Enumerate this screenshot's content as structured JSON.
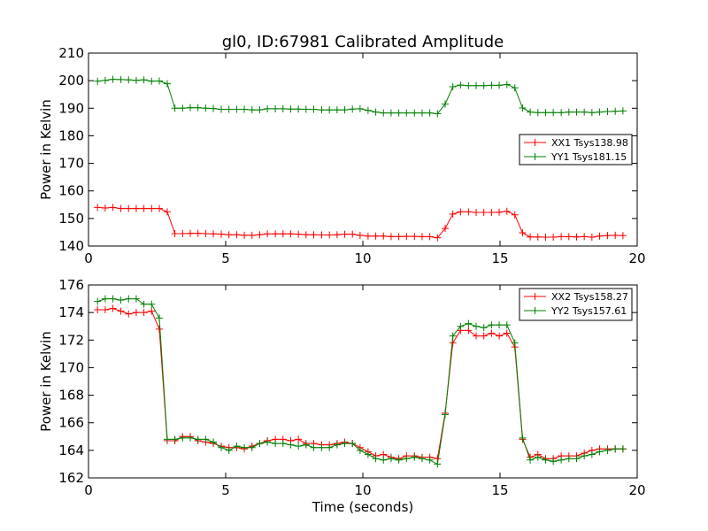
{
  "figure": {
    "title": "gl0, ID:67981 Calibrated Amplitude",
    "xlabel": "Time (seconds)"
  },
  "chart_data": [
    {
      "type": "line",
      "ylabel": "Power in Kelvin",
      "xlabel": "",
      "xlim": [
        0,
        20
      ],
      "ylim": [
        140,
        210
      ],
      "x_ticks": [
        0,
        5,
        10,
        15,
        20
      ],
      "y_ticks": [
        140,
        150,
        160,
        170,
        180,
        190,
        200,
        210
      ],
      "legend_position": "center-right",
      "series": [
        {
          "name": "XX1 Tsys138.98",
          "color": "#ff0000",
          "x": [
            0.33,
            0.61,
            0.89,
            1.18,
            1.46,
            1.74,
            2.02,
            2.3,
            2.58,
            2.87,
            3.15,
            3.43,
            3.71,
            3.99,
            4.27,
            4.55,
            4.84,
            5.12,
            5.4,
            5.68,
            5.96,
            6.24,
            6.52,
            6.81,
            7.09,
            7.37,
            7.65,
            7.93,
            8.21,
            8.5,
            8.78,
            9.06,
            9.34,
            9.62,
            9.9,
            10.19,
            10.47,
            10.75,
            11.03,
            11.31,
            11.59,
            11.88,
            12.16,
            12.44,
            12.72,
            13.0,
            13.28,
            13.56,
            13.85,
            14.13,
            14.41,
            14.69,
            14.97,
            15.25,
            15.54,
            15.82,
            16.1,
            16.38,
            16.66,
            16.94,
            17.23,
            17.51,
            17.79,
            18.07,
            18.35,
            18.63,
            18.92,
            19.2,
            19.48
          ],
          "y": [
            154.0,
            153.8,
            154.0,
            153.6,
            153.6,
            153.6,
            153.6,
            153.6,
            153.6,
            152.4,
            144.5,
            144.5,
            144.6,
            144.6,
            144.5,
            144.4,
            144.3,
            144.1,
            144.1,
            143.9,
            143.9,
            144.1,
            144.4,
            144.4,
            144.4,
            144.4,
            144.3,
            144.1,
            144.1,
            144.0,
            144.0,
            144.1,
            144.3,
            144.3,
            143.9,
            143.6,
            143.6,
            143.6,
            143.4,
            143.4,
            143.5,
            143.5,
            143.4,
            143.4,
            143.0,
            146.4,
            151.6,
            152.4,
            152.4,
            152.2,
            152.2,
            152.2,
            152.3,
            152.6,
            151.3,
            144.8,
            143.3,
            143.3,
            143.2,
            143.2,
            143.4,
            143.4,
            143.3,
            143.4,
            143.2,
            143.6,
            143.8,
            143.9,
            143.8
          ]
        },
        {
          "name": "YY1 Tsys181.15",
          "color": "#008000",
          "x": [
            0.33,
            0.61,
            0.89,
            1.18,
            1.46,
            1.74,
            2.02,
            2.3,
            2.58,
            2.87,
            3.15,
            3.43,
            3.71,
            3.99,
            4.27,
            4.55,
            4.84,
            5.12,
            5.4,
            5.68,
            5.96,
            6.24,
            6.52,
            6.81,
            7.09,
            7.37,
            7.65,
            7.93,
            8.21,
            8.5,
            8.78,
            9.06,
            9.34,
            9.62,
            9.9,
            10.19,
            10.47,
            10.75,
            11.03,
            11.31,
            11.59,
            11.88,
            12.16,
            12.44,
            12.72,
            13.0,
            13.28,
            13.56,
            13.85,
            14.13,
            14.41,
            14.69,
            14.97,
            15.25,
            15.54,
            15.82,
            16.1,
            16.38,
            16.66,
            16.94,
            17.23,
            17.51,
            17.79,
            18.07,
            18.35,
            18.63,
            18.92,
            19.2,
            19.48
          ],
          "y": [
            199.8,
            200.1,
            200.5,
            200.4,
            200.3,
            200.1,
            200.3,
            199.8,
            199.9,
            198.9,
            190.0,
            190.0,
            190.2,
            190.2,
            190.0,
            189.9,
            189.6,
            189.6,
            189.6,
            189.6,
            189.4,
            189.4,
            189.8,
            189.8,
            189.8,
            189.7,
            189.7,
            189.6,
            189.6,
            189.4,
            189.4,
            189.4,
            189.4,
            189.7,
            189.8,
            189.2,
            188.6,
            188.3,
            188.3,
            188.3,
            188.3,
            188.3,
            188.3,
            188.3,
            188.0,
            191.5,
            197.8,
            198.4,
            198.2,
            198.2,
            198.2,
            198.3,
            198.3,
            198.6,
            197.4,
            190.1,
            188.6,
            188.4,
            188.4,
            188.4,
            188.4,
            188.6,
            188.6,
            188.6,
            188.4,
            188.6,
            188.8,
            188.9,
            189.0
          ]
        }
      ]
    },
    {
      "type": "line",
      "ylabel": "Power in Kelvin",
      "xlabel": "Time (seconds)",
      "xlim": [
        0,
        20
      ],
      "ylim": [
        162,
        176
      ],
      "x_ticks": [
        0,
        5,
        10,
        15,
        20
      ],
      "y_ticks": [
        162,
        164,
        166,
        168,
        170,
        172,
        174,
        176
      ],
      "legend_position": "top-right",
      "series": [
        {
          "name": "XX2 Tsys158.27",
          "color": "#ff0000",
          "x": [
            0.33,
            0.61,
            0.89,
            1.18,
            1.46,
            1.74,
            2.02,
            2.3,
            2.58,
            2.87,
            3.15,
            3.43,
            3.71,
            3.99,
            4.27,
            4.55,
            4.84,
            5.12,
            5.4,
            5.68,
            5.96,
            6.24,
            6.52,
            6.81,
            7.09,
            7.37,
            7.65,
            7.93,
            8.21,
            8.5,
            8.78,
            9.06,
            9.34,
            9.62,
            9.9,
            10.19,
            10.47,
            10.75,
            11.03,
            11.31,
            11.59,
            11.88,
            12.16,
            12.44,
            12.72,
            13.0,
            13.28,
            13.56,
            13.85,
            14.13,
            14.41,
            14.69,
            14.97,
            15.25,
            15.54,
            15.82,
            16.1,
            16.38,
            16.66,
            16.94,
            17.23,
            17.51,
            17.79,
            18.07,
            18.35,
            18.63,
            18.92,
            19.2,
            19.48
          ],
          "y": [
            174.2,
            174.2,
            174.3,
            174.1,
            173.9,
            174.0,
            174.0,
            174.1,
            172.8,
            164.7,
            164.7,
            165.0,
            165.0,
            164.7,
            164.6,
            164.5,
            164.3,
            164.2,
            164.2,
            164.1,
            164.3,
            164.5,
            164.7,
            164.8,
            164.8,
            164.7,
            164.8,
            164.5,
            164.5,
            164.4,
            164.4,
            164.5,
            164.6,
            164.5,
            164.2,
            163.9,
            163.6,
            163.7,
            163.5,
            163.4,
            163.6,
            163.6,
            163.5,
            163.5,
            163.4,
            166.7,
            171.8,
            172.7,
            172.7,
            172.3,
            172.3,
            172.5,
            172.3,
            172.5,
            171.5,
            164.8,
            163.5,
            163.7,
            163.4,
            163.4,
            163.6,
            163.6,
            163.6,
            163.8,
            164.0,
            164.1,
            164.1,
            164.1,
            164.1
          ]
        },
        {
          "name": "YY2 Tsys157.61",
          "color": "#008000",
          "x": [
            0.33,
            0.61,
            0.89,
            1.18,
            1.46,
            1.74,
            2.02,
            2.3,
            2.58,
            2.87,
            3.15,
            3.43,
            3.71,
            3.99,
            4.27,
            4.55,
            4.84,
            5.12,
            5.4,
            5.68,
            5.96,
            6.24,
            6.52,
            6.81,
            7.09,
            7.37,
            7.65,
            7.93,
            8.21,
            8.5,
            8.78,
            9.06,
            9.34,
            9.62,
            9.9,
            10.19,
            10.47,
            10.75,
            11.03,
            11.31,
            11.59,
            11.88,
            12.16,
            12.44,
            12.72,
            13.0,
            13.28,
            13.56,
            13.85,
            14.13,
            14.41,
            14.69,
            14.97,
            15.25,
            15.54,
            15.82,
            16.1,
            16.38,
            16.66,
            16.94,
            17.23,
            17.51,
            17.79,
            18.07,
            18.35,
            18.63,
            18.92,
            19.2,
            19.48
          ],
          "y": [
            174.8,
            175.0,
            175.0,
            174.9,
            175.0,
            175.0,
            174.6,
            174.6,
            173.6,
            164.8,
            164.8,
            164.9,
            164.9,
            164.8,
            164.8,
            164.6,
            164.2,
            164.0,
            164.3,
            164.2,
            164.2,
            164.5,
            164.6,
            164.5,
            164.5,
            164.4,
            164.3,
            164.4,
            164.2,
            164.2,
            164.2,
            164.4,
            164.5,
            164.5,
            164.0,
            163.7,
            163.4,
            163.3,
            163.4,
            163.3,
            163.4,
            163.5,
            163.4,
            163.3,
            163.0,
            166.6,
            172.3,
            173.0,
            173.2,
            173.0,
            172.9,
            173.1,
            173.1,
            173.1,
            171.8,
            164.9,
            163.3,
            163.5,
            163.3,
            163.2,
            163.3,
            163.4,
            163.4,
            163.6,
            163.7,
            163.9,
            164.0,
            164.1,
            164.1
          ]
        }
      ]
    }
  ]
}
